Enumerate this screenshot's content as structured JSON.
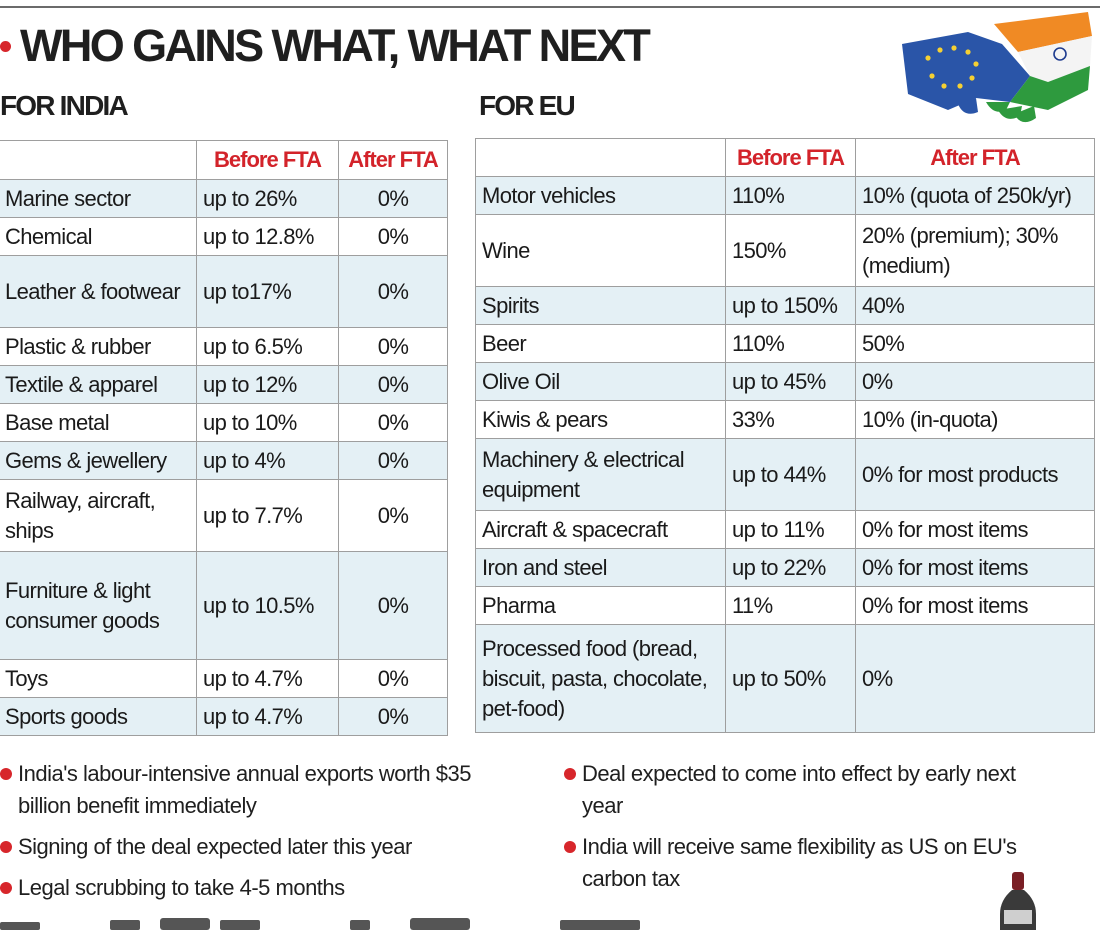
{
  "title": "WHO GAINS WHAT, WHAT NEXT",
  "india": {
    "heading": "FOR INDIA",
    "col_before": "Before FTA",
    "col_after": "After FTA",
    "rows": [
      {
        "sector": "Marine sector",
        "before": "up to 26%",
        "after": "0%"
      },
      {
        "sector": "Chemical",
        "before": "up to 12.8%",
        "after": "0%"
      },
      {
        "sector": "Leather & footwear",
        "before": "up to17%",
        "after": "0%"
      },
      {
        "sector": "Plastic & rubber",
        "before": "up to 6.5%",
        "after": "0%"
      },
      {
        "sector": "Textile & apparel",
        "before": "up to 12%",
        "after": "0%"
      },
      {
        "sector": "Base metal",
        "before": "up to 10%",
        "after": "0%"
      },
      {
        "sector": "Gems & jewellery",
        "before": "up to 4%",
        "after": "0%"
      },
      {
        "sector": "Railway, aircraft, ships",
        "before": "up to 7.7%",
        "after": "0%"
      },
      {
        "sector": "Furniture & light consumer goods",
        "before": "up to 10.5%",
        "after": "0%"
      },
      {
        "sector": "Toys",
        "before": "up to 4.7%",
        "after": "0%"
      },
      {
        "sector": "Sports goods",
        "before": "up to 4.7%",
        "after": "0%"
      }
    ]
  },
  "eu": {
    "heading": "FOR EU",
    "col_before": "Before FTA",
    "col_after": "After FTA",
    "rows": [
      {
        "sector": "Motor vehicles",
        "before": "110%",
        "after": "10% (quota of 250k/yr)"
      },
      {
        "sector": "Wine",
        "before": "150%",
        "after": "20% (premium); 30% (medium)"
      },
      {
        "sector": "Spirits",
        "before": "up to 150%",
        "after": "40%"
      },
      {
        "sector": "Beer",
        "before": "110%",
        "after": "50%"
      },
      {
        "sector": "Olive Oil",
        "before": "up to 45%",
        "after": "0%"
      },
      {
        "sector": "Kiwis & pears",
        "before": "33%",
        "after": "10% (in-quota)"
      },
      {
        "sector": "Machinery & electrical equipment",
        "before": "up to 44%",
        "after": "0% for most products"
      },
      {
        "sector": "Aircraft & spacecraft",
        "before": "up to 11%",
        "after": "0% for most items"
      },
      {
        "sector": "Iron and steel",
        "before": "up to 22%",
        "after": "0% for most items"
      },
      {
        "sector": "Pharma",
        "before": "11%",
        "after": "0% for most items"
      },
      {
        "sector": "Processed food (bread, biscuit, pasta, chocolate, pet-food)",
        "before": "up to 50%",
        "after": "0%"
      }
    ]
  },
  "notes_left": [
    "India's labour-intensive annual exports worth $35 billion benefit immediately",
    "Signing of the deal expected later this year",
    "Legal scrubbing to take 4-5 months"
  ],
  "notes_right": [
    "Deal expected to come into effect by early next year",
    "India will receive same flexibility as US on EU's carbon tax"
  ],
  "colors": {
    "accent_red": "#d7262b",
    "row_tint": "#e4f0f5",
    "eu_blue": "#2a55a8",
    "saffron": "#f08a24",
    "india_green": "#2e9a3e"
  }
}
